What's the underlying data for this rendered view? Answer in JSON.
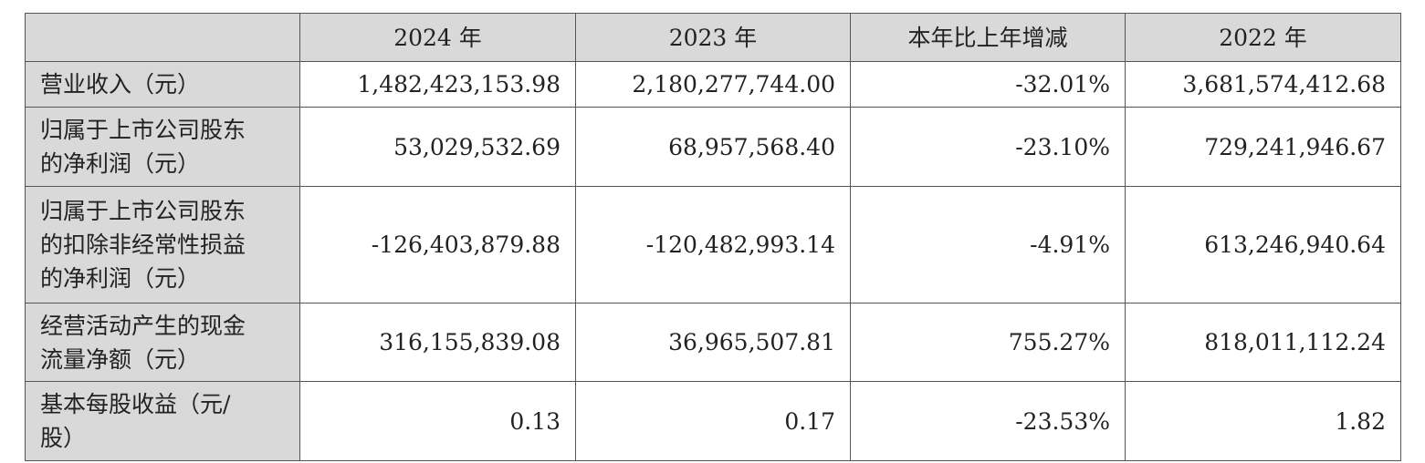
{
  "table": {
    "columns": [
      "2024 年",
      "2023 年",
      "本年比上年增减",
      "2022 年"
    ],
    "rows": [
      {
        "label": [
          "营业收入（元）"
        ],
        "cells": [
          "1,482,423,153.98",
          "2,180,277,744.00",
          "-32.01%",
          "3,681,574,412.68"
        ]
      },
      {
        "label": [
          "归属于上市公司股东",
          "的净利润（元）"
        ],
        "cells": [
          "53,029,532.69",
          "68,957,568.40",
          "-23.10%",
          "729,241,946.67"
        ]
      },
      {
        "label": [
          "归属于上市公司股东",
          "的扣除非经常性损益",
          "的净利润（元）"
        ],
        "cells": [
          "-126,403,879.88",
          "-120,482,993.14",
          "-4.91%",
          "613,246,940.64"
        ]
      },
      {
        "label": [
          "经营活动产生的现金",
          "流量净额（元）"
        ],
        "cells": [
          "316,155,839.08",
          "36,965,507.81",
          "755.27%",
          "818,011,112.24"
        ]
      },
      {
        "label": [
          "基本每股收益（元/",
          "股）"
        ],
        "cells": [
          "0.13",
          "0.17",
          "-23.53%",
          "1.82"
        ]
      }
    ]
  }
}
